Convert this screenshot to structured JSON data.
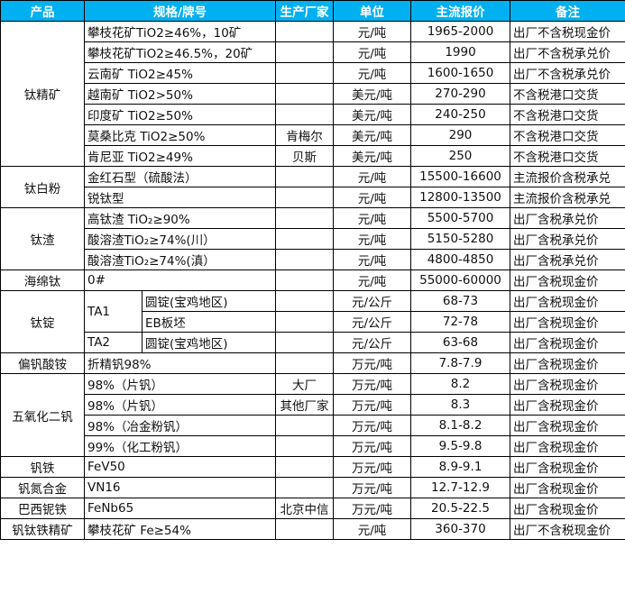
{
  "header": [
    "产品",
    "规格/牌号",
    "生产厂家",
    "单位",
    "主流报价",
    "备注"
  ],
  "colors": {
    "header_bg": "#00b0f0",
    "header_text": "#ffffff"
  },
  "groups": [
    {
      "product": "钛精矿",
      "rows": [
        {
          "spec": "攀枝花矿TiO2≥46%，10矿",
          "maker": "",
          "unit": "元/吨",
          "price": "1965-2000",
          "note": "出厂不含税现金价"
        },
        {
          "spec": "攀枝花矿TiO2≥46.5%，20矿",
          "maker": "",
          "unit": "元/吨",
          "price": "1990",
          "note": "出厂不含税承兑价"
        },
        {
          "spec": "云南矿 TiO2≥45%",
          "maker": "",
          "unit": "元/吨",
          "price": "1600-1650",
          "note": "出厂不含税承兑价"
        },
        {
          "spec": "越南矿 TiO2>50%",
          "maker": "",
          "unit": "美元/吨",
          "price": "270-290",
          "note": "不含税港口交货"
        },
        {
          "spec": "印度矿 TiO2≥50%",
          "maker": "",
          "unit": "美元/吨",
          "price": "240-250",
          "note": "不含税港口交货"
        },
        {
          "spec": "莫桑比克 TiO2≥50%",
          "maker": "肯梅尔",
          "unit": "美元/吨",
          "price": "290",
          "note": "不含税港口交货"
        },
        {
          "spec": "肯尼亚 TiO2≥49%",
          "maker": "贝斯",
          "unit": "美元/吨",
          "price": "250",
          "note": "不含税港口交货"
        }
      ]
    },
    {
      "product": "钛白粉",
      "rows": [
        {
          "spec": "金红石型（硫酸法）",
          "maker": "",
          "unit": "元/吨",
          "price": "15500-16600",
          "note": "主流报价含税承兑"
        },
        {
          "spec": "锐钛型",
          "maker": "",
          "unit": "元/吨",
          "price": "12800-13500",
          "note": "主流报价含税承兑"
        }
      ]
    },
    {
      "product": "钛渣",
      "rows": [
        {
          "spec": "高钛渣 TiO₂≥90%",
          "maker": "",
          "unit": "元/吨",
          "price": "5500-5700",
          "note": "出厂含税承兑价"
        },
        {
          "spec": "酸溶渣TiO₂≥74%(川）",
          "maker": "",
          "unit": "元/吨",
          "price": "5150-5280",
          "note": "出厂含税承兑价"
        },
        {
          "spec": "酸溶渣TiO₂≥74%(滇）",
          "maker": "",
          "unit": "元/吨",
          "price": "4800-4850",
          "note": "出厂含税承兑价"
        }
      ]
    },
    {
      "product": "海绵钛",
      "rows": [
        {
          "spec": "0#",
          "maker": "",
          "unit": "元/吨",
          "price": "55000-60000",
          "note": "出厂含税现金价"
        }
      ]
    },
    {
      "product": "钛锭",
      "grades": [
        {
          "grade": "TA1",
          "rows": [
            {
              "form": "圆锭(宝鸡地区)",
              "maker": "",
              "unit": "元/公斤",
              "price": "68-73",
              "note": "出厂含税现金价"
            },
            {
              "form": "EB板坯",
              "maker": "",
              "unit": "元/公斤",
              "price": "72-78",
              "note": "出厂含税现金价"
            }
          ]
        },
        {
          "grade": "TA2",
          "rows": [
            {
              "form": "圆锭(宝鸡地区)",
              "maker": "",
              "unit": "元/公斤",
              "price": "63-68",
              "note": "出厂含税现金价"
            }
          ]
        }
      ]
    },
    {
      "product": "偏钒酸铵",
      "rows": [
        {
          "spec": "折精钒98%",
          "maker": "",
          "unit": "万元/吨",
          "price": "7.8-7.9",
          "note": "出厂含税现金价"
        }
      ]
    },
    {
      "product": "五氧化二钒",
      "rows": [
        {
          "spec": "98%（片钒）",
          "maker": "大厂",
          "unit": "万元/吨",
          "price": "8.2",
          "note": "出厂含税现金价"
        },
        {
          "spec": "98%（片钒）",
          "maker": "其他厂家",
          "unit": "万元/吨",
          "price": "8.3",
          "note": "出厂含税现金价"
        },
        {
          "spec": "98%（冶金粉钒）",
          "maker": "",
          "unit": "万元/吨",
          "price": "8.1-8.2",
          "note": "出厂含税现金价"
        },
        {
          "spec": "99%（化工粉钒）",
          "maker": "",
          "unit": "万元/吨",
          "price": "9.5-9.8",
          "note": "出厂含税现金价"
        }
      ]
    },
    {
      "product": "钒铁",
      "rows": [
        {
          "spec": "FeV50",
          "maker": "",
          "unit": "万元/吨",
          "price": "8.9-9.1",
          "note": "出厂含税现金价"
        }
      ]
    },
    {
      "product": "钒氮合金",
      "rows": [
        {
          "spec": "VN16",
          "maker": "",
          "unit": "万元/吨",
          "price": "12.7-12.9",
          "note": "出厂含税现金价"
        }
      ]
    },
    {
      "product": "巴西铌铁",
      "rows": [
        {
          "spec": "FeNb65",
          "maker": "北京中信",
          "unit": "万元/吨",
          "price": "20.5-22.5",
          "note": "出厂含税现金价"
        }
      ]
    },
    {
      "product": "钒钛铁精矿",
      "rows": [
        {
          "spec": "攀枝花矿 Fe≥54%",
          "maker": "",
          "unit": "元/吨",
          "price": "360-370",
          "note": "出厂不含税现金价"
        }
      ]
    }
  ]
}
